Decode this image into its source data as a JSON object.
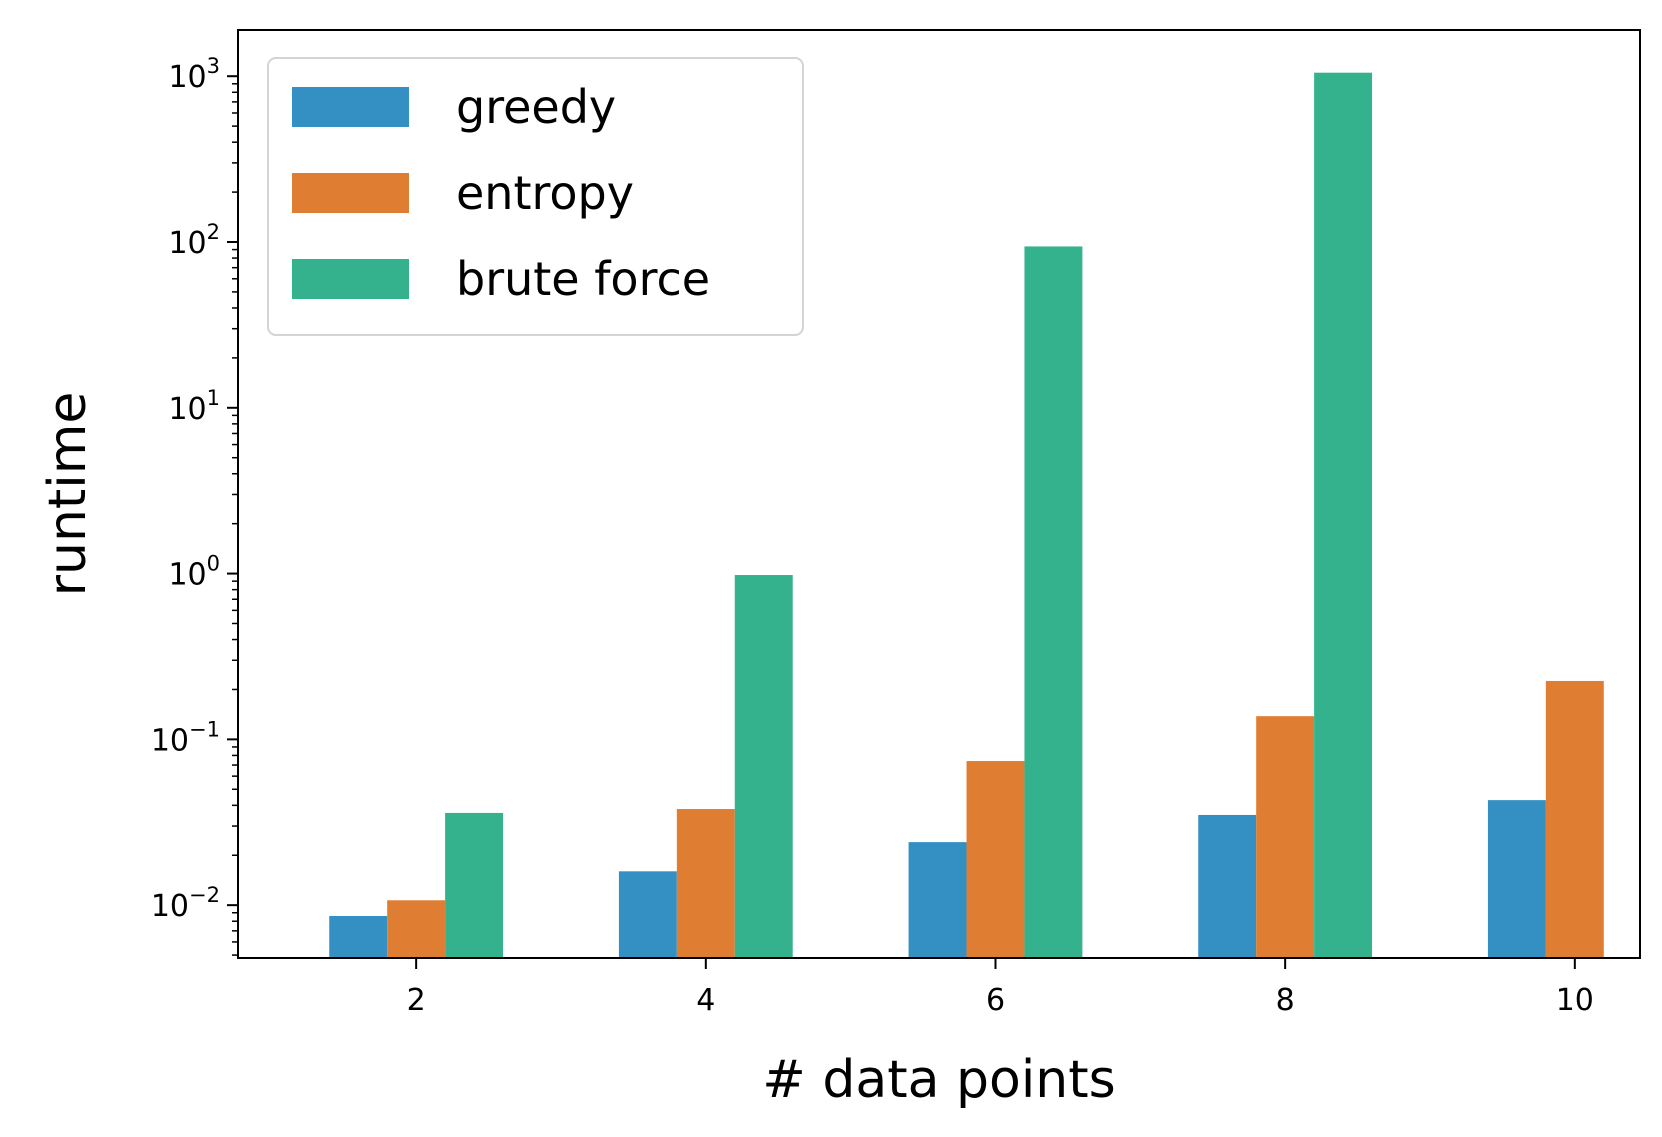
{
  "chart_data": {
    "type": "bar",
    "categories": [
      "2",
      "4",
      "6",
      "8",
      "10"
    ],
    "x": [
      2,
      4,
      6,
      8,
      10
    ],
    "series": [
      {
        "name": "greedy",
        "color": "#348fc3",
        "values": [
          0.0086,
          0.016,
          0.024,
          0.035,
          0.043
        ]
      },
      {
        "name": "entropy",
        "color": "#df7e33",
        "values": [
          0.0107,
          0.038,
          0.074,
          0.138,
          0.225
        ]
      },
      {
        "name": "brute force",
        "color": "#34b28e",
        "values": [
          0.036,
          0.98,
          94,
          1050,
          null
        ]
      }
    ],
    "xlabel": "# data points",
    "ylabel": "runtime",
    "yscale": "log",
    "ylim": [
      0.0048,
      1900
    ],
    "xlim": [
      0.77,
      10.45
    ],
    "yticks": [
      {
        "value": 0.01,
        "base": "10",
        "exp": "−2"
      },
      {
        "value": 0.1,
        "base": "10",
        "exp": "−1"
      },
      {
        "value": 1,
        "base": "10",
        "exp": "0"
      },
      {
        "value": 10,
        "base": "10",
        "exp": "1"
      },
      {
        "value": 100,
        "base": "10",
        "exp": "2"
      },
      {
        "value": 1000,
        "base": "10",
        "exp": "3"
      }
    ],
    "xticks": [
      "2",
      "4",
      "6",
      "8",
      "10"
    ],
    "legend": {
      "position": "top-left"
    },
    "grid": false
  }
}
